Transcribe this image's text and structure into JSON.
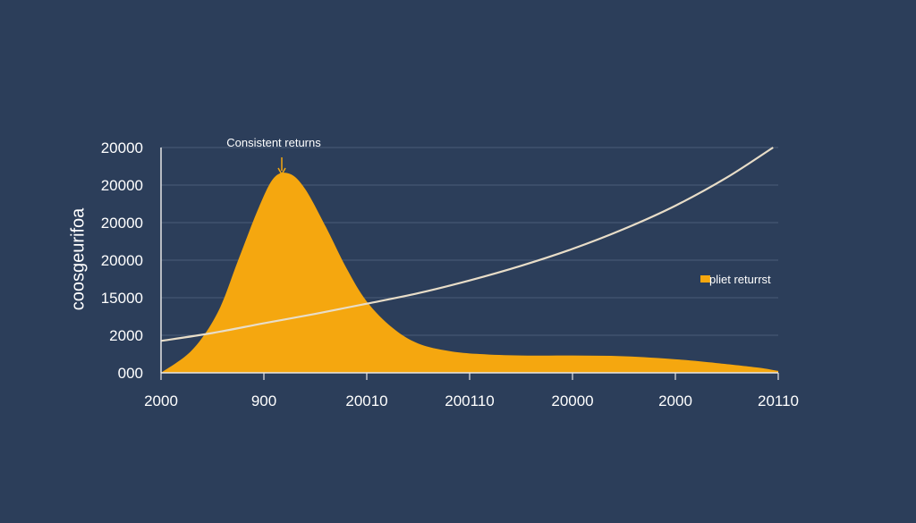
{
  "chart_data": {
    "type": "area",
    "ylabel": "coosgeurifoa",
    "y_ticks": [
      "000",
      "2000",
      "15000",
      "20000",
      "20000",
      "20000",
      "20000"
    ],
    "x_ticks": [
      "2000",
      "900",
      "20010",
      "200110",
      "20000",
      "2000",
      "20110"
    ],
    "grid": true,
    "legend": {
      "label": "pliet returrst",
      "placement": "right"
    },
    "annotation": {
      "text": "Consistent returns"
    },
    "series": [
      {
        "type": "area",
        "color": "#f5a70f",
        "points": [
          [
            0,
            0.0
          ],
          [
            0.3,
            0.6
          ],
          [
            0.55,
            1.6
          ],
          [
            0.75,
            3.0
          ],
          [
            0.95,
            4.4
          ],
          [
            1.1,
            5.2
          ],
          [
            1.25,
            5.3
          ],
          [
            1.4,
            4.9
          ],
          [
            1.6,
            3.9
          ],
          [
            1.8,
            2.8
          ],
          [
            2.0,
            1.9
          ],
          [
            2.25,
            1.2
          ],
          [
            2.5,
            0.78
          ],
          [
            2.8,
            0.58
          ],
          [
            3.1,
            0.5
          ],
          [
            3.5,
            0.46
          ],
          [
            4.0,
            0.46
          ],
          [
            4.5,
            0.44
          ],
          [
            5.0,
            0.36
          ],
          [
            5.4,
            0.26
          ],
          [
            5.8,
            0.14
          ],
          [
            6.0,
            0.05
          ]
        ]
      },
      {
        "type": "line",
        "color": "#e8ddc8",
        "points": [
          [
            0,
            0.85
          ],
          [
            0.5,
            1.06
          ],
          [
            1.0,
            1.32
          ],
          [
            1.5,
            1.57
          ],
          [
            2.0,
            1.84
          ],
          [
            2.5,
            2.12
          ],
          [
            3.0,
            2.46
          ],
          [
            3.5,
            2.85
          ],
          [
            4.0,
            3.3
          ],
          [
            4.5,
            3.83
          ],
          [
            5.0,
            4.45
          ],
          [
            5.5,
            5.2
          ],
          [
            5.95,
            6.0
          ]
        ]
      }
    ]
  }
}
